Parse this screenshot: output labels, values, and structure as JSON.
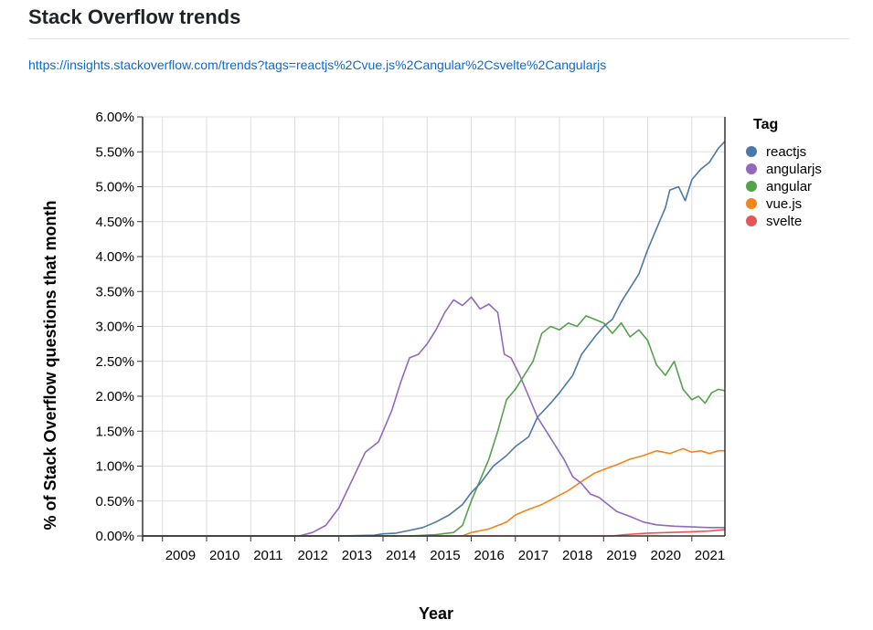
{
  "page": {
    "title": "Stack Overflow trends",
    "link": "https://insights.stackoverflow.com/trends?tags=reactjs%2Cvue.js%2Cangular%2Csvelte%2Cangularjs"
  },
  "chart_data": {
    "type": "line",
    "title": "",
    "xlabel": "Year",
    "ylabel": "% of Stack Overflow questions that month",
    "xlim": [
      2008.55,
      2021.75
    ],
    "ylim": [
      0,
      6
    ],
    "x_ticks": [
      "2009",
      "2010",
      "2011",
      "2012",
      "2013",
      "2014",
      "2015",
      "2016",
      "2017",
      "2018",
      "2019",
      "2020",
      "2021"
    ],
    "y_ticks": [
      "0.00%",
      "0.50%",
      "1.00%",
      "1.50%",
      "2.00%",
      "2.50%",
      "3.00%",
      "3.50%",
      "4.00%",
      "4.50%",
      "5.00%",
      "5.50%",
      "6.00%"
    ],
    "grid": true,
    "legend": {
      "title": "Tag",
      "position": "right"
    },
    "series": [
      {
        "name": "reactjs",
        "color": "#4c78a8",
        "points": [
          [
            2008.55,
            0
          ],
          [
            2013.0,
            0
          ],
          [
            2013.8,
            0.01
          ],
          [
            2014.0,
            0.03
          ],
          [
            2014.3,
            0.04
          ],
          [
            2014.6,
            0.08
          ],
          [
            2014.9,
            0.12
          ],
          [
            2015.2,
            0.2
          ],
          [
            2015.5,
            0.3
          ],
          [
            2015.8,
            0.45
          ],
          [
            2016.0,
            0.62
          ],
          [
            2016.2,
            0.75
          ],
          [
            2016.5,
            1.0
          ],
          [
            2016.8,
            1.15
          ],
          [
            2017.0,
            1.28
          ],
          [
            2017.3,
            1.42
          ],
          [
            2017.5,
            1.7
          ],
          [
            2017.8,
            1.9
          ],
          [
            2018.0,
            2.05
          ],
          [
            2018.3,
            2.3
          ],
          [
            2018.5,
            2.6
          ],
          [
            2018.8,
            2.85
          ],
          [
            2019.0,
            3.0
          ],
          [
            2019.2,
            3.1
          ],
          [
            2019.4,
            3.35
          ],
          [
            2019.6,
            3.55
          ],
          [
            2019.8,
            3.75
          ],
          [
            2020.0,
            4.1
          ],
          [
            2020.2,
            4.4
          ],
          [
            2020.4,
            4.7
          ],
          [
            2020.5,
            4.95
          ],
          [
            2020.7,
            5.0
          ],
          [
            2020.85,
            4.8
          ],
          [
            2021.0,
            5.1
          ],
          [
            2021.2,
            5.25
          ],
          [
            2021.4,
            5.35
          ],
          [
            2021.6,
            5.55
          ],
          [
            2021.75,
            5.65
          ]
        ]
      },
      {
        "name": "angularjs",
        "color": "#9467bd",
        "points": [
          [
            2008.55,
            0
          ],
          [
            2012.1,
            0
          ],
          [
            2012.4,
            0.05
          ],
          [
            2012.7,
            0.15
          ],
          [
            2013.0,
            0.4
          ],
          [
            2013.3,
            0.8
          ],
          [
            2013.6,
            1.2
          ],
          [
            2013.9,
            1.35
          ],
          [
            2014.0,
            1.5
          ],
          [
            2014.2,
            1.8
          ],
          [
            2014.4,
            2.2
          ],
          [
            2014.6,
            2.55
          ],
          [
            2014.8,
            2.6
          ],
          [
            2015.0,
            2.75
          ],
          [
            2015.2,
            2.95
          ],
          [
            2015.4,
            3.2
          ],
          [
            2015.6,
            3.38
          ],
          [
            2015.8,
            3.3
          ],
          [
            2016.0,
            3.42
          ],
          [
            2016.2,
            3.25
          ],
          [
            2016.4,
            3.32
          ],
          [
            2016.6,
            3.2
          ],
          [
            2016.75,
            2.6
          ],
          [
            2016.9,
            2.55
          ],
          [
            2017.1,
            2.3
          ],
          [
            2017.3,
            2.0
          ],
          [
            2017.5,
            1.7
          ],
          [
            2017.7,
            1.5
          ],
          [
            2017.9,
            1.3
          ],
          [
            2018.1,
            1.1
          ],
          [
            2018.3,
            0.85
          ],
          [
            2018.5,
            0.75
          ],
          [
            2018.7,
            0.6
          ],
          [
            2018.9,
            0.55
          ],
          [
            2019.1,
            0.45
          ],
          [
            2019.3,
            0.35
          ],
          [
            2019.6,
            0.28
          ],
          [
            2019.9,
            0.2
          ],
          [
            2020.2,
            0.16
          ],
          [
            2020.6,
            0.14
          ],
          [
            2021.0,
            0.13
          ],
          [
            2021.4,
            0.12
          ],
          [
            2021.75,
            0.12
          ]
        ]
      },
      {
        "name": "angular",
        "color": "#54a24b",
        "points": [
          [
            2008.55,
            0
          ],
          [
            2014.6,
            0
          ],
          [
            2015.2,
            0.02
          ],
          [
            2015.6,
            0.05
          ],
          [
            2015.8,
            0.15
          ],
          [
            2016.0,
            0.5
          ],
          [
            2016.2,
            0.8
          ],
          [
            2016.4,
            1.1
          ],
          [
            2016.6,
            1.5
          ],
          [
            2016.8,
            1.95
          ],
          [
            2017.0,
            2.1
          ],
          [
            2017.2,
            2.3
          ],
          [
            2017.4,
            2.5
          ],
          [
            2017.6,
            2.9
          ],
          [
            2017.8,
            3.0
          ],
          [
            2018.0,
            2.95
          ],
          [
            2018.2,
            3.05
          ],
          [
            2018.4,
            3.0
          ],
          [
            2018.6,
            3.15
          ],
          [
            2018.8,
            3.1
          ],
          [
            2019.0,
            3.05
          ],
          [
            2019.2,
            2.9
          ],
          [
            2019.4,
            3.05
          ],
          [
            2019.6,
            2.85
          ],
          [
            2019.8,
            2.95
          ],
          [
            2020.0,
            2.8
          ],
          [
            2020.2,
            2.45
          ],
          [
            2020.4,
            2.3
          ],
          [
            2020.6,
            2.5
          ],
          [
            2020.8,
            2.1
          ],
          [
            2021.0,
            1.95
          ],
          [
            2021.15,
            2.0
          ],
          [
            2021.3,
            1.9
          ],
          [
            2021.45,
            2.05
          ],
          [
            2021.6,
            2.1
          ],
          [
            2021.75,
            2.08
          ]
        ]
      },
      {
        "name": "vue.js",
        "color": "#f58518",
        "points": [
          [
            2008.55,
            0
          ],
          [
            2015.8,
            0
          ],
          [
            2016.0,
            0.05
          ],
          [
            2016.4,
            0.1
          ],
          [
            2016.8,
            0.2
          ],
          [
            2017.0,
            0.3
          ],
          [
            2017.3,
            0.38
          ],
          [
            2017.6,
            0.45
          ],
          [
            2017.9,
            0.55
          ],
          [
            2018.2,
            0.65
          ],
          [
            2018.5,
            0.78
          ],
          [
            2018.8,
            0.9
          ],
          [
            2019.0,
            0.95
          ],
          [
            2019.3,
            1.02
          ],
          [
            2019.6,
            1.1
          ],
          [
            2019.9,
            1.15
          ],
          [
            2020.2,
            1.22
          ],
          [
            2020.5,
            1.18
          ],
          [
            2020.8,
            1.25
          ],
          [
            2021.0,
            1.2
          ],
          [
            2021.2,
            1.22
          ],
          [
            2021.4,
            1.18
          ],
          [
            2021.6,
            1.22
          ],
          [
            2021.75,
            1.22
          ]
        ]
      },
      {
        "name": "svelte",
        "color": "#e45756",
        "points": [
          [
            2008.55,
            0
          ],
          [
            2019.2,
            0
          ],
          [
            2019.5,
            0.02
          ],
          [
            2020.0,
            0.04
          ],
          [
            2020.5,
            0.05
          ],
          [
            2021.0,
            0.06
          ],
          [
            2021.4,
            0.07
          ],
          [
            2021.75,
            0.09
          ]
        ]
      }
    ]
  }
}
